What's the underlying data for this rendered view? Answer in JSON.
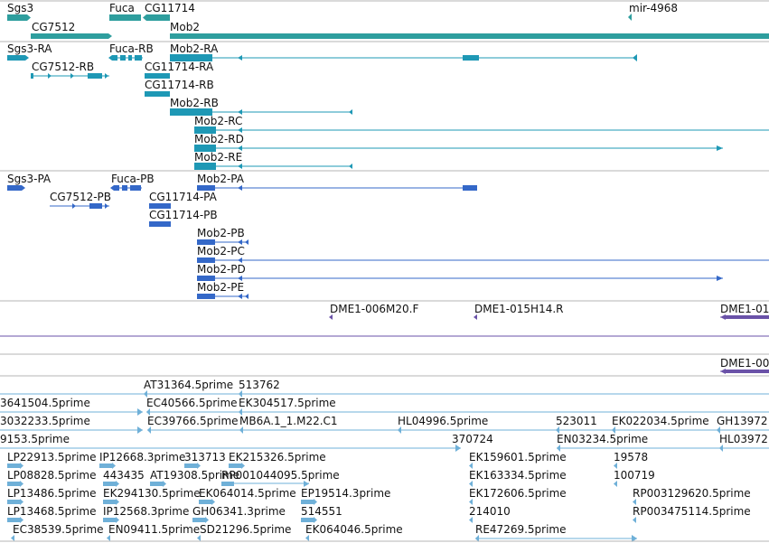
{
  "colors": {
    "gene": "#2e9e9e",
    "transcript": "#1e98b5",
    "protein": "#3468c8",
    "clone": "#6a52a8",
    "est": "#6fb0d8",
    "divider": "#b5b5b5"
  },
  "tracks": {
    "genes": [
      {
        "label": "Sgs3"
      },
      {
        "label": "Fuca"
      },
      {
        "label": "CG11714"
      },
      {
        "label": "mir-4968"
      },
      {
        "label": "CG7512"
      },
      {
        "label": "Mob2"
      }
    ],
    "transcripts": [
      {
        "label": "Sgs3-RA"
      },
      {
        "label": "Fuca-RB"
      },
      {
        "label": "Mob2-RA"
      },
      {
        "label": "CG7512-RB"
      },
      {
        "label": "CG11714-RA"
      },
      {
        "label": "CG11714-RB"
      },
      {
        "label": "Mob2-RB"
      },
      {
        "label": "Mob2-RC"
      },
      {
        "label": "Mob2-RD"
      },
      {
        "label": "Mob2-RE"
      }
    ],
    "proteins": [
      {
        "label": "Sgs3-PA"
      },
      {
        "label": "Fuca-PB"
      },
      {
        "label": "Mob2-PA"
      },
      {
        "label": "CG7512-PB"
      },
      {
        "label": "CG11714-PA"
      },
      {
        "label": "CG11714-PB"
      },
      {
        "label": "Mob2-PB"
      },
      {
        "label": "Mob2-PC"
      },
      {
        "label": "Mob2-PD"
      },
      {
        "label": "Mob2-PE"
      }
    ],
    "clones": [
      {
        "label": "DME1-006M20.F"
      },
      {
        "label": "DME1-015H14.R"
      },
      {
        "label": "DME1-01"
      },
      {
        "label": "DME1-00"
      }
    ],
    "ests": [
      {
        "label": "AT31364.5prime"
      },
      {
        "label": "513762"
      },
      {
        "label": "3641504.5prime"
      },
      {
        "label": "EC40566.5prime"
      },
      {
        "label": "EK304517.5prime"
      },
      {
        "label": "3032233.5prime"
      },
      {
        "label": "EC39766.5prime"
      },
      {
        "label": "MB6A.1_1.M22.C1"
      },
      {
        "label": "HL04996.5prime"
      },
      {
        "label": "523011"
      },
      {
        "label": "EK022034.5prime"
      },
      {
        "label": "GH13972"
      },
      {
        "label": "9153.5prime"
      },
      {
        "label": "370724"
      },
      {
        "label": "EN03234.5prime"
      },
      {
        "label": "HL03972"
      },
      {
        "label": "LP22913.5prime"
      },
      {
        "label": "IP12668.3prime"
      },
      {
        "label": "313713"
      },
      {
        "label": "EK215326.5prime"
      },
      {
        "label": "EK159601.5prime"
      },
      {
        "label": "19578"
      },
      {
        "label": "LP08828.5prime"
      },
      {
        "label": "443435"
      },
      {
        "label": "AT19308.5prime"
      },
      {
        "label": "RP001044095.5prime"
      },
      {
        "label": "EK163334.5prime"
      },
      {
        "label": "100719"
      },
      {
        "label": "LP13486.5prime"
      },
      {
        "label": "EK294130.5prime"
      },
      {
        "label": "EK064014.5prime"
      },
      {
        "label": "EP19514.3prime"
      },
      {
        "label": "EK172606.5prime"
      },
      {
        "label": "RP003129620.5prime"
      },
      {
        "label": "LP13468.5prime"
      },
      {
        "label": "IP12568.3prime"
      },
      {
        "label": "GH06341.3prime"
      },
      {
        "label": "514551"
      },
      {
        "label": "214010"
      },
      {
        "label": "RP003475114.5prime"
      },
      {
        "label": "EC38539.5prime"
      },
      {
        "label": "EN09411.5prime"
      },
      {
        "label": "SD21296.5prime"
      },
      {
        "label": "EK064046.5prime"
      },
      {
        "label": "RE47269.5prime"
      }
    ]
  }
}
